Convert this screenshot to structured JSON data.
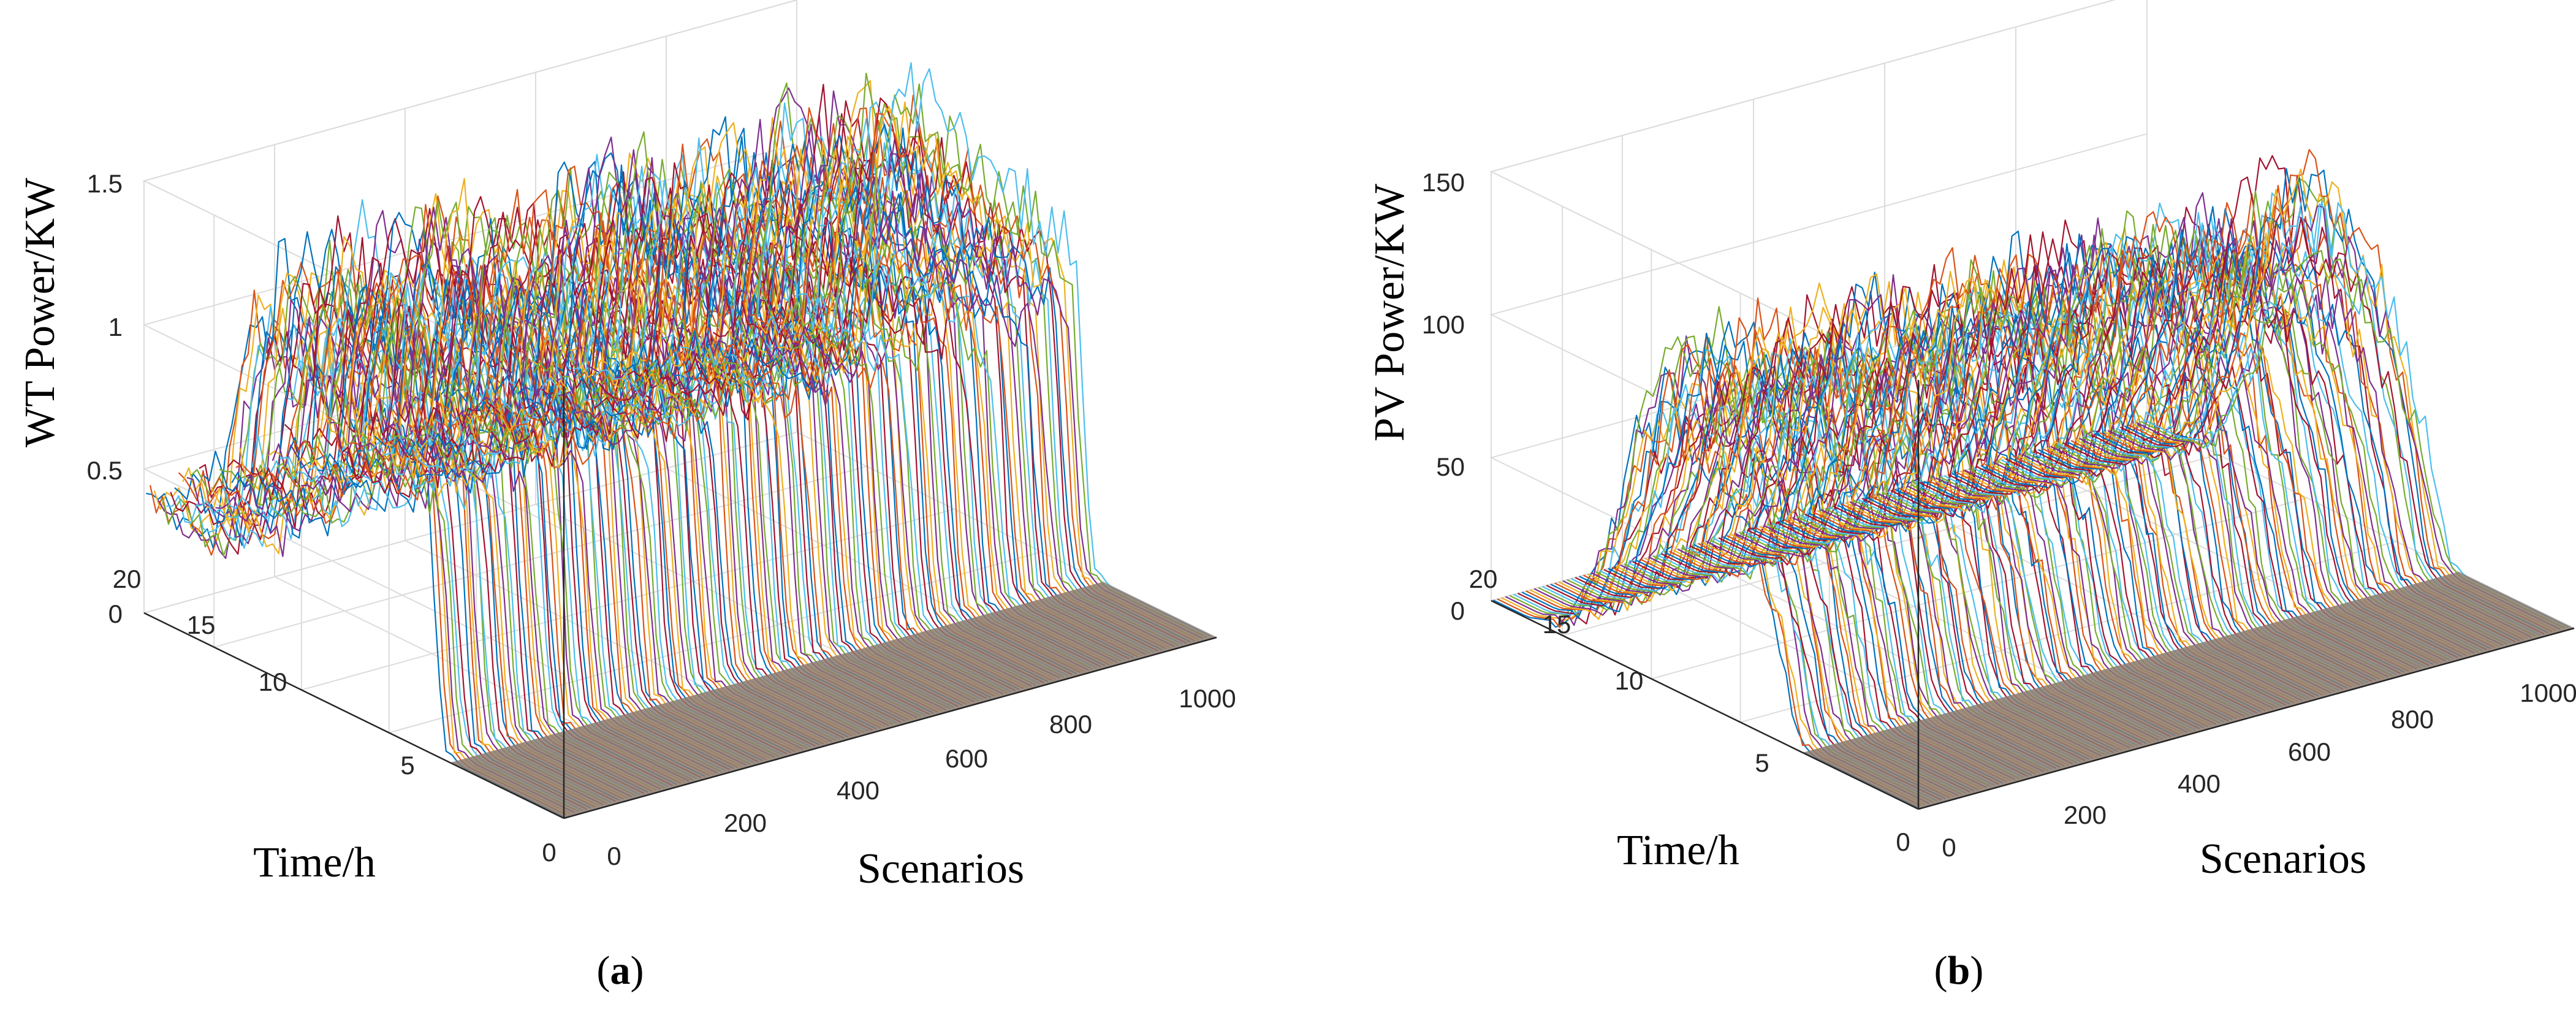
{
  "chart_data": [
    {
      "type": "line",
      "panel": "a",
      "caption": [
        "(",
        "a",
        ")"
      ],
      "xlabel": "Scenarios",
      "ylabel": "Time/h",
      "zlabel": "WT Power/KW",
      "xlim": [
        0,
        1000
      ],
      "ylim": [
        0,
        24
      ],
      "zlim": [
        0,
        1.5
      ],
      "xticks": [
        "0",
        "200",
        "400",
        "600",
        "800",
        "1000"
      ],
      "yticks": [
        "0",
        "5",
        "10",
        "15",
        "20"
      ],
      "zticks": [
        "0",
        "0.5",
        "1",
        "1.5"
      ],
      "series_count": 1000,
      "grid": true,
      "profile": {
        "time_h": [
          0,
          2,
          4,
          6,
          7,
          8,
          10,
          12,
          14,
          16,
          18,
          19,
          20,
          22,
          24
        ],
        "mean_power": [
          0,
          0,
          0,
          0,
          0.05,
          1.0,
          1.05,
          1.1,
          1.15,
          1.2,
          1.25,
          0.95,
          0.35,
          0.4,
          0.42
        ]
      }
    },
    {
      "type": "line",
      "panel": "b",
      "caption": [
        "(",
        "b",
        ")"
      ],
      "xlabel": "Scenarios",
      "ylabel": "Time/h",
      "zlabel": "PV Power/KW",
      "xlim": [
        0,
        1000
      ],
      "ylim": [
        0,
        24
      ],
      "zlim": [
        0,
        150
      ],
      "xticks": [
        "0",
        "200",
        "400",
        "600",
        "800",
        "1000"
      ],
      "yticks": [
        "0",
        "5",
        "10",
        "15",
        "20"
      ],
      "zticks": [
        "0",
        "50",
        "100",
        "150"
      ],
      "series_count": 1000,
      "grid": true,
      "profile": {
        "time_h": [
          0,
          2,
          4,
          6,
          7,
          8,
          10,
          12,
          14,
          16,
          17,
          18,
          20,
          22,
          24
        ],
        "mean_power": [
          0,
          0,
          0,
          0,
          5,
          40,
          85,
          100,
          105,
          90,
          60,
          40,
          5,
          0,
          0
        ]
      }
    }
  ],
  "palette": [
    "#0072BD",
    "#D95319",
    "#EDB120",
    "#7E2F8E",
    "#77AC30",
    "#4DBEEE",
    "#A2142F"
  ]
}
